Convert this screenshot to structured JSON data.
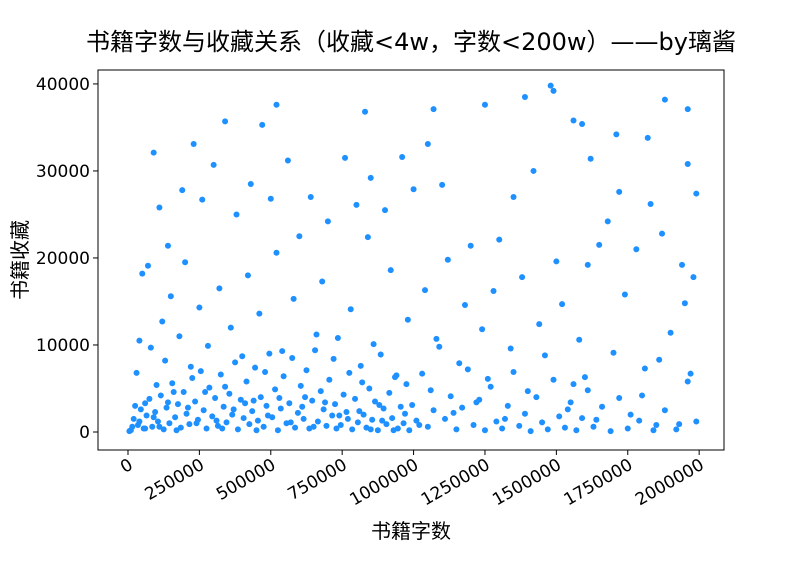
{
  "chart_data": {
    "type": "scatter",
    "title": "书籍字数与收藏关系（收藏<4w，字数<200w）——by璃酱",
    "x_label": "书籍字数",
    "y_label": "书籍收藏",
    "color": "#1e90ff",
    "xlim": [
      -105000,
      2087000
    ],
    "ylim": [
      -2070,
      41600
    ],
    "xticks": [
      0,
      250000,
      500000,
      750000,
      1000000,
      1250000,
      1500000,
      1750000,
      2000000
    ],
    "yticks": [
      0,
      10000,
      20000,
      30000,
      40000
    ],
    "x": [
      520000,
      1250000,
      1480000,
      1490000,
      1880000,
      1960000,
      1390000,
      1070000,
      830000,
      1990000,
      1960000,
      90000,
      230000,
      340000,
      470000,
      1560000,
      1590000,
      1820000,
      1710000,
      1870000,
      1940000,
      1980000,
      1950000,
      1970000,
      1960000,
      1900000,
      1680000,
      1620000,
      1720000,
      1610000,
      1650000,
      1580000,
      1560000,
      1520000,
      1500000,
      1420000,
      1350000,
      1300000,
      1280000,
      1200000,
      1100000,
      1050000,
      1000000,
      960000,
      900000,
      850000,
      800000,
      760000,
      700000,
      640000,
      600000,
      560000,
      500000,
      430000,
      380000,
      300000,
      260000,
      190000,
      140000,
      110000,
      70000,
      50000,
      30000,
      40000,
      1760000,
      1800000,
      1850000,
      1920000,
      1990000,
      1700000,
      1740000,
      1780000,
      1830000,
      1860000,
      1640000,
      1600000,
      1540000,
      1460000,
      1440000,
      1400000,
      1380000,
      1340000,
      1320000,
      1260000,
      1240000,
      1220000,
      1180000,
      1160000,
      1140000,
      1120000,
      1080000,
      1060000,
      1040000,
      1020000,
      980000,
      940000,
      920000,
      880000,
      860000,
      840000,
      820000,
      780000,
      740000,
      720000,
      680000,
      660000,
      620000,
      580000,
      540000,
      520000,
      480000,
      460000,
      440000,
      420000,
      400000,
      360000,
      340000,
      320000,
      280000,
      250000,
      220000,
      200000,
      180000,
      160000,
      150000,
      130000,
      120000,
      100000,
      80000,
      60000,
      10000,
      20000,
      35000,
      45000,
      55000,
      65000,
      75000,
      85000,
      95000,
      105000,
      115000,
      125000,
      135000,
      145000,
      155000,
      165000,
      175000,
      185000,
      195000,
      205000,
      215000,
      225000,
      235000,
      245000,
      255000,
      265000,
      275000,
      285000,
      295000,
      305000,
      315000,
      325000,
      335000,
      345000,
      355000,
      365000,
      375000,
      385000,
      395000,
      405000,
      415000,
      425000,
      435000,
      445000,
      455000,
      465000,
      475000,
      485000,
      495000,
      505000,
      515000,
      525000,
      535000,
      545000,
      555000,
      565000,
      575000,
      585000,
      595000,
      605000,
      615000,
      625000,
      635000,
      645000,
      655000,
      665000,
      675000,
      685000,
      695000,
      705000,
      715000,
      725000,
      735000,
      745000,
      755000,
      765000,
      775000,
      785000,
      795000,
      805000,
      815000,
      825000,
      835000,
      845000,
      855000,
      865000,
      875000,
      885000,
      895000,
      905000,
      915000,
      925000,
      935000,
      945000,
      955000,
      965000,
      975000,
      985000,
      995000,
      1010000,
      1030000,
      1050000,
      1070000,
      1090000,
      1110000,
      1130000,
      1150000,
      1170000,
      1190000,
      1210000,
      1230000,
      1250000,
      1270000,
      1290000,
      1310000,
      1330000,
      1350000,
      1370000,
      1390000,
      1410000,
      1430000,
      1450000,
      1470000,
      1490000,
      1510000,
      1530000,
      1550000,
      1570000,
      1590000,
      1610000,
      1630000,
      1660000,
      1690000,
      1720000,
      1750000,
      1790000,
      1810000,
      1840000,
      1880000,
      1930000,
      5000,
      15000,
      25000,
      40000,
      60000,
      90000,
      110000,
      140000,
      170000,
      210000,
      240000,
      270000,
      310000,
      330000,
      370000,
      410000,
      450000,
      490000,
      530000,
      570000,
      610000,
      650000,
      690000,
      730000,
      770000,
      810000,
      850000,
      890000,
      930000,
      970000
    ],
    "values": [
      37600,
      37600,
      39800,
      39200,
      38200,
      37100,
      38500,
      37100,
      36800,
      27400,
      30800,
      32100,
      33100,
      35700,
      35300,
      35800,
      35400,
      33800,
      34200,
      22800,
      19200,
      17800,
      14800,
      6700,
      5800,
      11400,
      24200,
      31400,
      27600,
      19200,
      21500,
      10600,
      5500,
      14700,
      19600,
      30000,
      27000,
      22100,
      16200,
      21400,
      28400,
      33100,
      27900,
      31600,
      25500,
      29200,
      26100,
      31500,
      24200,
      27000,
      22500,
      31200,
      26800,
      28500,
      25000,
      30700,
      26700,
      27800,
      21400,
      25800,
      19100,
      18200,
      6800,
      10500,
      2000,
      4200,
      800,
      300,
      1200,
      9100,
      15800,
      21000,
      26200,
      8300,
      1400,
      6300,
      2600,
      8800,
      12400,
      4700,
      17800,
      9600,
      1500,
      6100,
      11800,
      3400,
      14600,
      7900,
      2200,
      19800,
      10700,
      4800,
      16300,
      800,
      12900,
      6500,
      18600,
      3100,
      10100,
      22400,
      5700,
      14100,
      1900,
      8400,
      17300,
      11200,
      4000,
      15300,
      9300,
      20600,
      6900,
      13600,
      3600,
      18000,
      8700,
      12000,
      5200,
      16500,
      9900,
      14300,
      7500,
      19500,
      11000,
      4600,
      15600,
      8200,
      12700,
      5400,
      9700,
      3300,
      200,
      1500,
      800,
      2600,
      400,
      1900,
      3800,
      600,
      2300,
      1200,
      4200,
      300,
      2800,
      1000,
      5600,
      1700,
      3200,
      500,
      4600,
      2100,
      900,
      6200,
      3500,
      1400,
      7000,
      2500,
      400,
      5100,
      1800,
      3900,
      700,
      6600,
      2900,
      1100,
      4400,
      2000,
      8000,
      300,
      3700,
      1600,
      5800,
      900,
      2400,
      7400,
      1300,
      4000,
      600,
      3000,
      9000,
      1700,
      4900,
      200,
      2700,
      6400,
      1000,
      3300,
      8500,
      500,
      2200,
      5300,
      1500,
      7100,
      400,
      3600,
      9400,
      1200,
      4700,
      2600,
      700,
      6000,
      1900,
      3200,
      10800,
      800,
      4300,
      2300,
      6800,
      300,
      3800,
      1100,
      7600,
      2000,
      500,
      5000,
      1400,
      3500,
      200,
      8900,
      2700,
      900,
      4500,
      1600,
      6300,
      400,
      2900,
      1000,
      5500,
      200,
      3100,
      1300,
      6700,
      600,
      2500,
      9800,
      1500,
      4100,
      300,
      2800,
      7200,
      800,
      3700,
      200,
      5200,
      1200,
      400,
      3000,
      6900,
      700,
      2100,
      100,
      4000,
      1100,
      300,
      6000,
      1800,
      500,
      3400,
      200,
      1600,
      4800,
      600,
      2900,
      100,
      3900,
      400,
      1300,
      7300,
      200,
      2500,
      900,
      100,
      600,
      3000,
      1200,
      400,
      1700,
      600,
      3400,
      200,
      2800,
      1000,
      4600,
      1300,
      400,
      2600,
      3300,
      200,
      1900,
      3900,
      1100,
      2900,
      600,
      3400,
      400,
      1500,
      2400,
      300,
      1300,
      200,
      2100
    ]
  }
}
